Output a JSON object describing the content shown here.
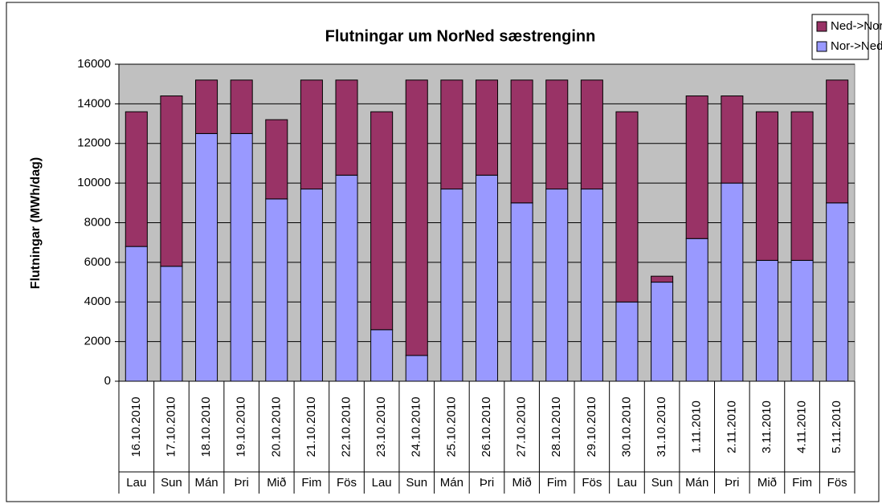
{
  "chart_data": {
    "type": "stacked_bar",
    "title": "Flutningar um NorNed sæstrenginn",
    "y_label": "Flutningar (MWh/dag)",
    "categories": [
      "16.10.2010",
      "17.10.2010",
      "18.10.2010",
      "19.10.2010",
      "20.10.2010",
      "21.10.2010",
      "22.10.2010",
      "23.10.2010",
      "24.10.2010",
      "25.10.2010",
      "26.10.2010",
      "27.10.2010",
      "28.10.2010",
      "29.10.2010",
      "30.10.2010",
      "31.10.2010",
      "1.11.2010",
      "2.11.2010",
      "3.11.2010",
      "4.11.2010",
      "5.11.2010"
    ],
    "weekdays": [
      "Lau",
      "Sun",
      "Mán",
      "Þri",
      "Mið",
      "Fim",
      "Fös",
      "Lau",
      "Sun",
      "Mán",
      "Þri",
      "Mið",
      "Fim",
      "Fös",
      "Lau",
      "Sun",
      "Mán",
      "Þri",
      "Mið",
      "Fim",
      "Fös"
    ],
    "series": [
      {
        "name": "Nor->Ned",
        "color": "#9999ff",
        "values": [
          6800,
          5800,
          12500,
          12500,
          9200,
          9700,
          10400,
          2600,
          1300,
          9700,
          10400,
          9000,
          9700,
          9700,
          4000,
          5000,
          7200,
          10000,
          6100,
          6100,
          9000
        ]
      },
      {
        "name": "Ned->Nor",
        "color": "#993366",
        "values": [
          6800,
          8600,
          2700,
          2700,
          4000,
          5500,
          4800,
          11000,
          13900,
          5500,
          4800,
          6200,
          5500,
          5500,
          9600,
          300,
          7200,
          4400,
          7500,
          7500,
          6200
        ]
      }
    ],
    "ylim": [
      0,
      16000
    ],
    "yticks": [
      0,
      2000,
      4000,
      6000,
      8000,
      10000,
      12000,
      14000,
      16000
    ],
    "grid": true,
    "legend": "top-right",
    "plot_background": "#c0c0c0"
  }
}
